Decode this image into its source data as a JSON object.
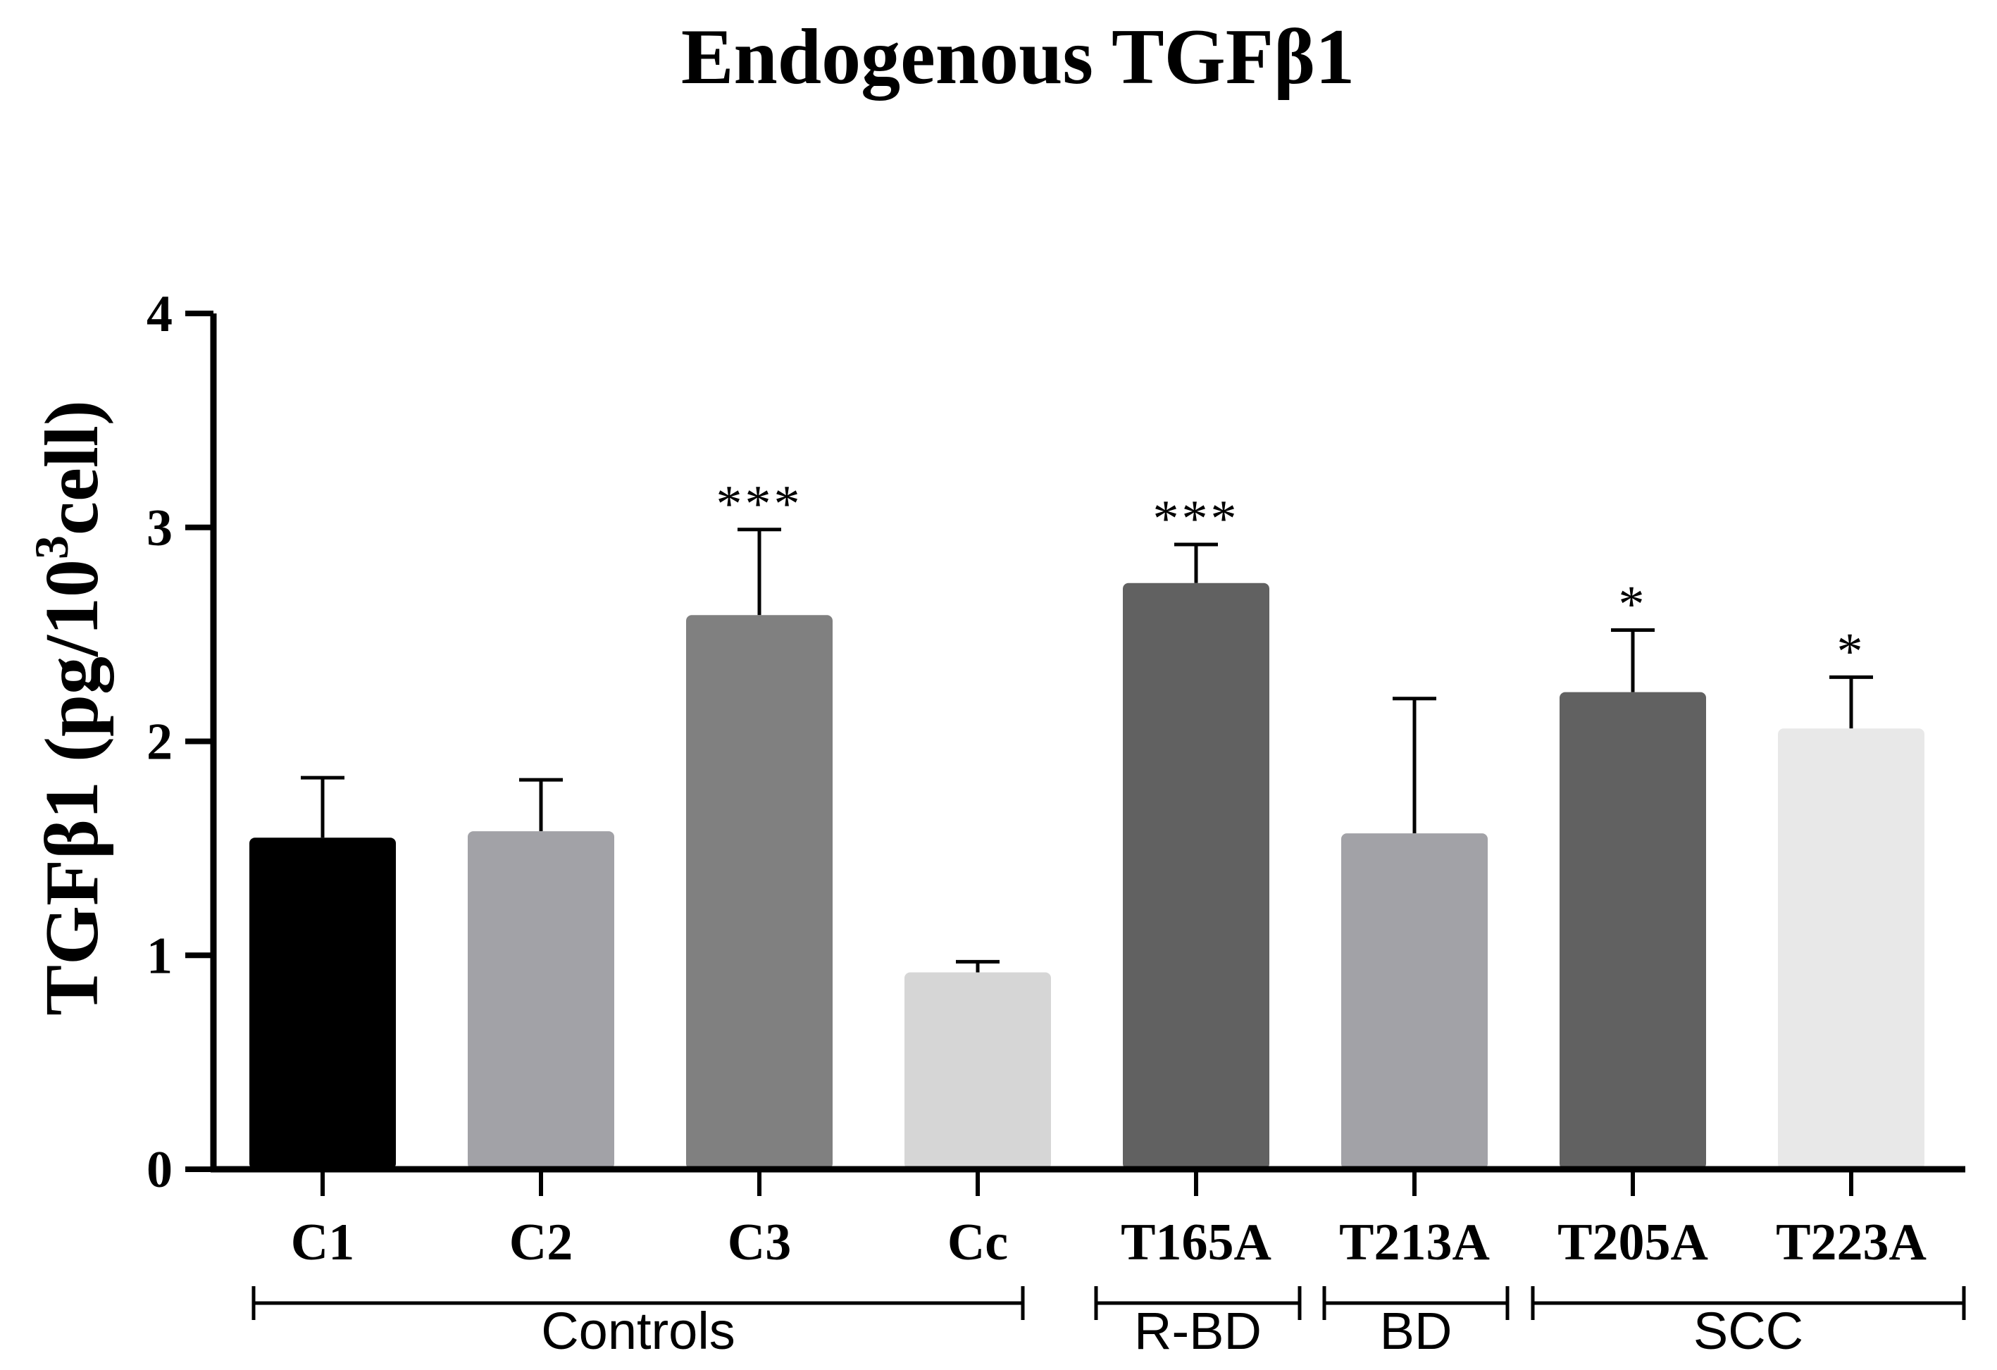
{
  "chart_data": {
    "type": "bar",
    "title": "Endogenous TGFβ1",
    "ylabel_main": "TGFβ1 (pg/10",
    "ylabel_sup": "3",
    "ylabel_tail": "cell)",
    "xlabel": "",
    "ylim": [
      0,
      4
    ],
    "yticks": [
      "0",
      "1",
      "2",
      "3",
      "4"
    ],
    "grid": false,
    "categories": [
      "C1",
      "C2",
      "C3",
      "Cc",
      "T165A",
      "T213A",
      "T205A",
      "T223A"
    ],
    "values": [
      1.55,
      1.58,
      2.59,
      0.92,
      2.74,
      1.57,
      2.23,
      2.06
    ],
    "errors": [
      0.28,
      0.24,
      0.4,
      0.05,
      0.18,
      0.63,
      0.29,
      0.24
    ],
    "significance": [
      "",
      "",
      "***",
      "",
      "***",
      "",
      "*",
      "*"
    ],
    "bar_colors": [
      "#000000",
      "#a2a2a7",
      "#808080",
      "#d6d6d6",
      "#616161",
      "#a2a2a7",
      "#616161",
      "#e8e8e8"
    ],
    "groups": [
      {
        "label": "Controls",
        "start": 0,
        "end": 3
      },
      {
        "label": "R-BD",
        "start": 4,
        "end": 4
      },
      {
        "label": "BD",
        "start": 5,
        "end": 5
      },
      {
        "label": "SCC",
        "start": 6,
        "end": 7
      }
    ]
  }
}
